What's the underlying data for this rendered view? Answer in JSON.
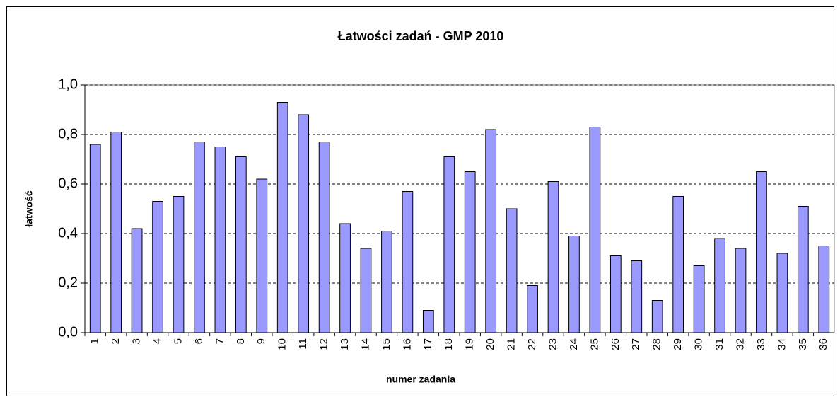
{
  "chart_data": {
    "type": "bar",
    "title": "Łatwości zadań - GMP 2010",
    "x_label": "numer zadania",
    "y_label": "łatwość",
    "categories": [
      "1",
      "2",
      "3",
      "4",
      "5",
      "6",
      "7",
      "8",
      "9",
      "10",
      "11",
      "12",
      "13",
      "14",
      "15",
      "16",
      "17",
      "18",
      "19",
      "20",
      "21",
      "22",
      "23",
      "24",
      "25",
      "26",
      "27",
      "28",
      "29",
      "30",
      "31",
      "32",
      "33",
      "34",
      "35",
      "36"
    ],
    "values": [
      0.76,
      0.81,
      0.42,
      0.53,
      0.55,
      0.77,
      0.75,
      0.71,
      0.62,
      0.93,
      0.88,
      0.77,
      0.44,
      0.34,
      0.41,
      0.57,
      0.09,
      0.71,
      0.65,
      0.82,
      0.5,
      0.19,
      0.61,
      0.39,
      0.83,
      0.31,
      0.29,
      0.13,
      0.55,
      0.27,
      0.38,
      0.34,
      0.65,
      0.32,
      0.51,
      0.35
    ],
    "color": "#9999ff",
    "ylim": [
      0,
      1
    ],
    "yticks": [
      {
        "value": 0,
        "label": "0,0"
      },
      {
        "value": 0.2,
        "label": "0,2"
      },
      {
        "value": 0.4,
        "label": "0,4"
      },
      {
        "value": 0.6,
        "label": "0,6"
      },
      {
        "value": 0.8,
        "label": "0,8"
      },
      {
        "value": 1,
        "label": "1,0"
      }
    ],
    "grid": true
  }
}
